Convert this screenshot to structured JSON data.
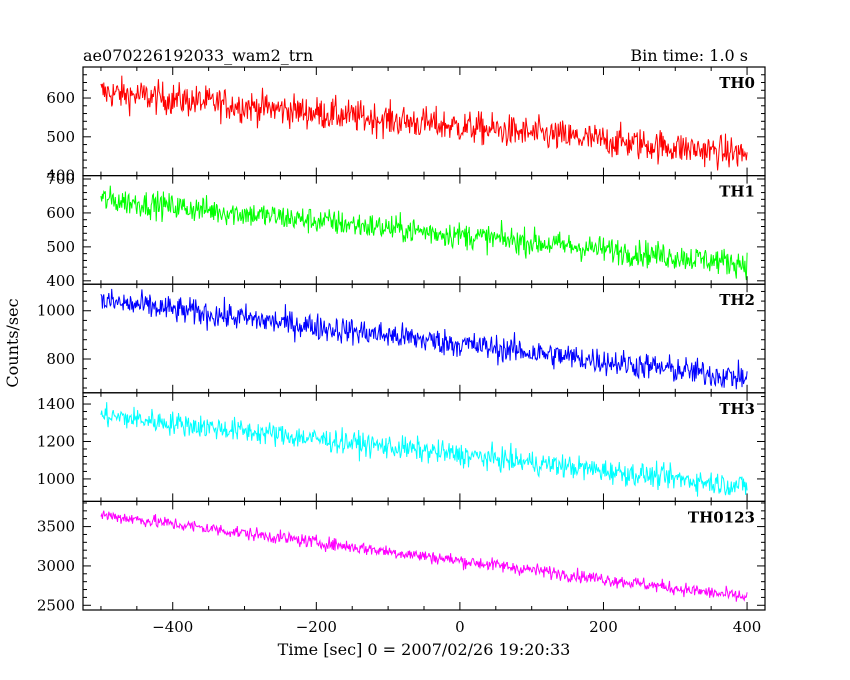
{
  "header": {
    "title": "ae070226192033_wam2_trn",
    "bin_time": "Bin time: 1.0 s"
  },
  "axes": {
    "ylabel": "Counts/sec",
    "xlabel": "Time [sec] 0 = 2007/02/26 19:20:33"
  },
  "chart_data": {
    "type": "line",
    "x_range": [
      -500,
      400
    ],
    "xlim": [
      -525,
      425
    ],
    "x_ticks": [
      -400,
      -200,
      0,
      200,
      400
    ],
    "x_tick_labels": [
      "−400",
      "−200",
      "0",
      "200",
      "400"
    ],
    "panels": [
      {
        "name": "TH0",
        "color": "#ff0000",
        "ylim": [
          400,
          680
        ],
        "yticks": [
          400,
          500,
          600
        ],
        "ytick_labels": [
          "400",
          "500",
          "600"
        ],
        "y_start": 615,
        "y_end": 455,
        "noise": 30
      },
      {
        "name": "TH1",
        "color": "#00ff00",
        "ylim": [
          390,
          710
        ],
        "yticks": [
          400,
          500,
          600,
          700
        ],
        "ytick_labels": [
          "400",
          "500",
          "600",
          "700"
        ],
        "y_start": 640,
        "y_end": 450,
        "noise": 28
      },
      {
        "name": "TH2",
        "color": "#0000ff",
        "ylim": [
          660,
          1110
        ],
        "yticks": [
          800,
          1000
        ],
        "ytick_labels": [
          "800",
          "1000"
        ],
        "y_start": 1040,
        "y_end": 720,
        "noise": 40
      },
      {
        "name": "TH3",
        "color": "#00ffff",
        "ylim": [
          880,
          1460
        ],
        "yticks": [
          1000,
          1200,
          1400
        ],
        "ytick_labels": [
          "1000",
          "1200",
          "1400"
        ],
        "y_start": 1340,
        "y_end": 960,
        "noise": 45
      },
      {
        "name": "TH0123",
        "color": "#ff00ff",
        "ylim": [
          2440,
          3820
        ],
        "yticks": [
          2500,
          3000,
          3500
        ],
        "ytick_labels": [
          "2500",
          "3000",
          "3500"
        ],
        "y_start": 3650,
        "y_end": 2600,
        "noise": 60
      }
    ]
  }
}
